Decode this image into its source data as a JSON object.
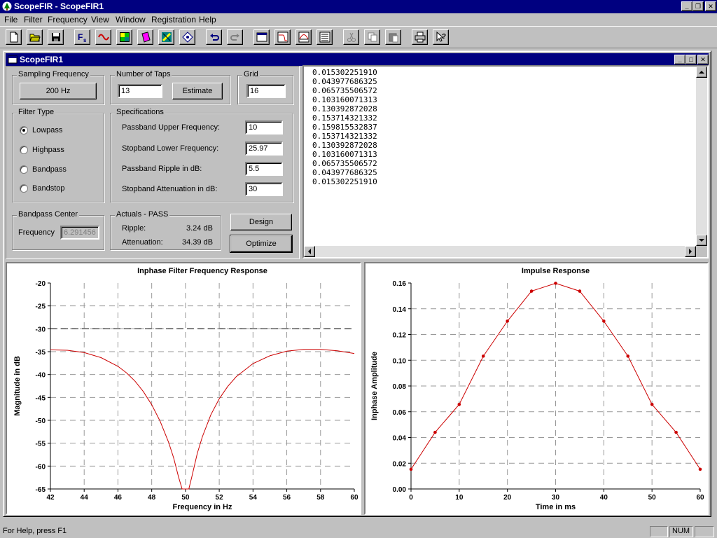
{
  "app": {
    "title": "ScopeFIR - ScopeFIR1"
  },
  "menu": [
    "File",
    "Filter",
    "Frequency",
    "View",
    "Window",
    "Registration",
    "Help"
  ],
  "child": {
    "title": "ScopeFIR1"
  },
  "sampling": {
    "label": "Sampling Frequency",
    "value": "200 Hz"
  },
  "taps": {
    "label": "Number of Taps",
    "value": "13",
    "estimate": "Estimate"
  },
  "grid": {
    "label": "Grid",
    "value": "16"
  },
  "filter_type": {
    "label": "Filter Type",
    "options": [
      "Lowpass",
      "Highpass",
      "Bandpass",
      "Bandstop"
    ],
    "selected": "Lowpass"
  },
  "specs": {
    "label": "Specifications",
    "rows": [
      {
        "label": "Passband Upper Frequency:",
        "value": "10"
      },
      {
        "label": "Stopband Lower Frequency:",
        "value": "25.97"
      },
      {
        "label": "Passband Ripple in dB:",
        "value": "5.5"
      },
      {
        "label": "Stopband Attenuation in dB:",
        "value": "30"
      }
    ]
  },
  "bandpass": {
    "label": "Bandpass Center",
    "freq_label": "Frequency",
    "value": "6.291456"
  },
  "actuals": {
    "label": "Actuals - PASS",
    "ripple_label": "Ripple:",
    "ripple_value": "3.24 dB",
    "atten_label": "Attenuation:",
    "atten_value": "34.39 dB"
  },
  "buttons": {
    "design": "Design",
    "optimize": "Optimize"
  },
  "coefficients": [
    "0.015302251910",
    "0.043977686325",
    "0.065735506572",
    "0.103160071313",
    "0.130392872028",
    "0.153714321332",
    "0.159815532837",
    "0.153714321332",
    "0.130392872028",
    "0.103160071313",
    "0.065735506572",
    "0.043977686325",
    "0.015302251910"
  ],
  "status": {
    "help": "For Help, press F1",
    "num": "NUM"
  },
  "chart_data": [
    {
      "type": "line",
      "title": "Inphase Filter Frequency Response",
      "xlabel": "Frequency in Hz",
      "ylabel": "Magnitude in dB",
      "xlim": [
        42,
        60
      ],
      "ylim": [
        -65,
        -20
      ],
      "xticks": [
        "42",
        "44",
        "46",
        "48",
        "50",
        "52",
        "54",
        "56",
        "58",
        "60"
      ],
      "yticks": [
        "-20",
        "-25",
        "-30",
        "-35",
        "-40",
        "-45",
        "-50",
        "-55",
        "-60",
        "-65"
      ],
      "reference_line": -30,
      "grid": true,
      "series": [
        {
          "color": "#cc0000",
          "x": [
            42,
            43,
            44,
            45,
            46,
            46.5,
            47,
            47.5,
            48,
            48.5,
            49,
            49.3,
            49.6,
            49.8,
            50,
            50.2,
            50.4,
            50.7,
            51,
            51.5,
            52,
            52.5,
            53,
            54,
            55,
            56,
            57,
            58,
            59,
            60
          ],
          "y": [
            -34.6,
            -34.7,
            -35.2,
            -36.3,
            -38.2,
            -39.6,
            -41.4,
            -43.7,
            -46.6,
            -50.2,
            -54.8,
            -58.2,
            -62.5,
            -65,
            -65,
            -65,
            -62,
            -57.2,
            -53.6,
            -48.8,
            -45.3,
            -42.6,
            -40.5,
            -37.6,
            -35.9,
            -34.9,
            -34.5,
            -34.5,
            -34.8,
            -35.4
          ]
        }
      ]
    },
    {
      "type": "line",
      "title": "Impulse Response",
      "xlabel": "Time in ms",
      "ylabel": "Inphase Amplitude",
      "xlim": [
        0,
        60
      ],
      "ylim": [
        0,
        0.16
      ],
      "xticks": [
        "0",
        "10",
        "20",
        "30",
        "40",
        "50",
        "60"
      ],
      "yticks": [
        "0.16",
        "0.14",
        "0.12",
        "0.10",
        "0.08",
        "0.06",
        "0.04",
        "0.02",
        "0.00"
      ],
      "grid": true,
      "series": [
        {
          "color": "#cc0000",
          "x": [
            0,
            5,
            10,
            15,
            20,
            25,
            30,
            35,
            40,
            45,
            50,
            55,
            60
          ],
          "y": [
            0.0153,
            0.044,
            0.0657,
            0.1032,
            0.1304,
            0.1537,
            0.1598,
            0.1537,
            0.1304,
            0.1032,
            0.0657,
            0.044,
            0.0153
          ]
        }
      ]
    }
  ]
}
